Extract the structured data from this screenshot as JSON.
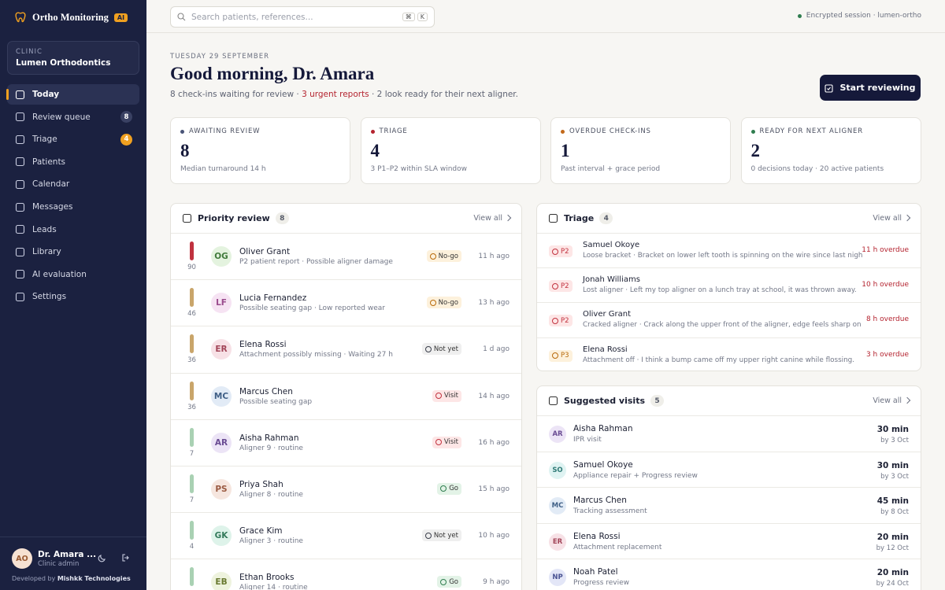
{
  "sidebar": {
    "brand": "Ortho Monitoring",
    "brand_badge": "AI",
    "clinic_label": "CLINIC",
    "clinic_name": "Lumen Orthodontics",
    "nav": [
      {
        "label": "Today",
        "active": true
      },
      {
        "label": "Review queue",
        "badge": 8,
        "badge_color": "#3a4163"
      },
      {
        "label": "Triage",
        "badge": 4,
        "badge_color": "#f0a020"
      },
      {
        "label": "Patients"
      },
      {
        "label": "Calendar"
      },
      {
        "label": "Messages"
      },
      {
        "label": "Leads"
      },
      {
        "label": "Library"
      },
      {
        "label": "AI evaluation"
      },
      {
        "label": "Settings"
      }
    ],
    "user": {
      "initials": "AO",
      "name": "Dr. Amara ...",
      "role": "Clinic admin"
    },
    "footer_prefix": "Developed by",
    "footer_company": "Mishkk Technologies"
  },
  "topbar": {
    "search_placeholder": "Search patients, references...",
    "keys": [
      "⌘",
      "K"
    ],
    "session": "Encrypted session · lumen-ortho"
  },
  "header": {
    "date": "TUESDAY 29 SEPTEMBER",
    "greeting": "Good morning, Dr. Amara",
    "summary_before": "8 check-ins waiting for review · ",
    "summary_urgent": "3 urgent reports",
    "summary_after": " · 2 look ready for their next aligner.",
    "button": "Start reviewing"
  },
  "stats": [
    {
      "label": "AWAITING REVIEW",
      "value": 8,
      "note": "Median turnaround 14 h",
      "color": "#4a5578"
    },
    {
      "label": "TRIAGE",
      "value": 4,
      "note": "3 P1–P2 within SLA window",
      "color": "#b4232f"
    },
    {
      "label": "OVERDUE CHECK-INS",
      "value": 1,
      "note": "Past interval + grace period",
      "color": "#c2691b"
    },
    {
      "label": "READY FOR NEXT ALIGNER",
      "value": 2,
      "note": "0 decisions today · 20 active patients",
      "color": "#2f7d4f"
    }
  ],
  "priority": {
    "title": "Priority review",
    "count": 8,
    "view_all": "View all",
    "rows": [
      {
        "score": 90,
        "bar": "#c0323f",
        "initials": "OG",
        "avatar": "#e4f3df",
        "avatar_text": "#3f7a3a",
        "name": "Oliver Grant",
        "detail": "P2 patient report · Possible aligner damage",
        "status": "No-go",
        "status_color": "#b86a0a",
        "status_bg": "#fdf1dc",
        "time": "11 h ago"
      },
      {
        "score": 46,
        "bar": "#c9a56a",
        "initials": "LF",
        "avatar": "#f6e3f3",
        "avatar_text": "#9a4b8d",
        "name": "Lucia Fernandez",
        "detail": "Possible seating gap · Low reported wear",
        "status": "No-go",
        "status_color": "#b86a0a",
        "status_bg": "#fdf1dc",
        "time": "13 h ago"
      },
      {
        "score": 36,
        "bar": "#c9a56a",
        "initials": "ER",
        "avatar": "#f7e1e6",
        "avatar_text": "#a24558",
        "name": "Elena Rossi",
        "detail": "Attachment possibly missing · Waiting 27 h",
        "status": "Not yet",
        "status_color": "#3b3f4c",
        "status_bg": "#efefef",
        "time": "1 d ago"
      },
      {
        "score": 36,
        "bar": "#c9a56a",
        "initials": "MC",
        "avatar": "#e2ebf6",
        "avatar_text": "#3f5f86",
        "name": "Marcus Chen",
        "detail": "Possible seating gap",
        "status": "Visit",
        "status_color": "#c2323f",
        "status_bg": "#fde6e6",
        "time": "14 h ago"
      },
      {
        "score": 7,
        "bar": "#a9d1b3",
        "initials": "AR",
        "avatar": "#ece4f6",
        "avatar_text": "#6a4c93",
        "name": "Aisha Rahman",
        "detail": "Aligner 9 · routine",
        "status": "Visit",
        "status_color": "#c2323f",
        "status_bg": "#fde6e6",
        "time": "16 h ago"
      },
      {
        "score": 7,
        "bar": "#a9d1b3",
        "initials": "PS",
        "avatar": "#f6e6df",
        "avatar_text": "#9a5a42",
        "name": "Priya Shah",
        "detail": "Aligner 8 · routine",
        "status": "Go",
        "status_color": "#2f7d4f",
        "status_bg": "#e3f3e7",
        "time": "15 h ago"
      },
      {
        "score": 4,
        "bar": "#a9d1b3",
        "initials": "GK",
        "avatar": "#def3ea",
        "avatar_text": "#337a5b",
        "name": "Grace Kim",
        "detail": "Aligner 3 · routine",
        "status": "Not yet",
        "status_color": "#3b3f4c",
        "status_bg": "#efefef",
        "time": "10 h ago"
      },
      {
        "score": null,
        "bar": "#a9d1b3",
        "initials": "EB",
        "avatar": "#eef3de",
        "avatar_text": "#6a7a32",
        "name": "Ethan Brooks",
        "detail": "Aligner 14 · routine",
        "status": "Go",
        "status_color": "#2f7d4f",
        "status_bg": "#e3f3e7",
        "time": "9 h ago"
      }
    ]
  },
  "triage": {
    "title": "Triage",
    "count": 4,
    "view_all": "View all",
    "rows": [
      {
        "priority": "P2",
        "color": "#c2323f",
        "bg": "#fde6e6",
        "name": "Samuel Okoye",
        "detail": "Loose bracket · Bracket on lower left tooth is spinning on the wire since last night.",
        "overdue": "11 h overdue"
      },
      {
        "priority": "P2",
        "color": "#c2323f",
        "bg": "#fde6e6",
        "name": "Jonah Williams",
        "detail": "Lost aligner · Left my top aligner on a lunch tray at school, it was thrown away.",
        "overdue": "10 h overdue"
      },
      {
        "priority": "P2",
        "color": "#c2323f",
        "bg": "#fde6e6",
        "name": "Oliver Grant",
        "detail": "Cracked aligner · Crack along the upper front of the aligner, edge feels sharp on ...",
        "overdue": "8 h overdue"
      },
      {
        "priority": "P3",
        "color": "#b86a0a",
        "bg": "#fdf1dc",
        "name": "Elena Rossi",
        "detail": "Attachment off · I think a bump came off my upper right canine while flossing.",
        "overdue": "3 h overdue"
      }
    ]
  },
  "visits": {
    "title": "Suggested visits",
    "count": 5,
    "view_all": "View all",
    "rows": [
      {
        "initials": "AR",
        "avatar": "#ece4f6",
        "avatar_text": "#6a4c93",
        "name": "Aisha Rahman",
        "reason": "IPR visit",
        "duration": "30 min",
        "due": "by 3 Oct"
      },
      {
        "initials": "SO",
        "avatar": "#dff3f2",
        "avatar_text": "#2f7a76",
        "name": "Samuel Okoye",
        "reason": "Appliance repair + Progress review",
        "duration": "30 min",
        "due": "by 3 Oct"
      },
      {
        "initials": "MC",
        "avatar": "#e2ebf6",
        "avatar_text": "#3f5f86",
        "name": "Marcus Chen",
        "reason": "Tracking assessment",
        "duration": "45 min",
        "due": "by 8 Oct"
      },
      {
        "initials": "ER",
        "avatar": "#f7e1e6",
        "avatar_text": "#a24558",
        "name": "Elena Rossi",
        "reason": "Attachment replacement",
        "duration": "20 min",
        "due": "by 12 Oct"
      },
      {
        "initials": "NP",
        "avatar": "#e3e6f7",
        "avatar_text": "#4a5393",
        "name": "Noah Patel",
        "reason": "Progress review",
        "duration": "20 min",
        "due": "by 24 Oct"
      }
    ]
  }
}
